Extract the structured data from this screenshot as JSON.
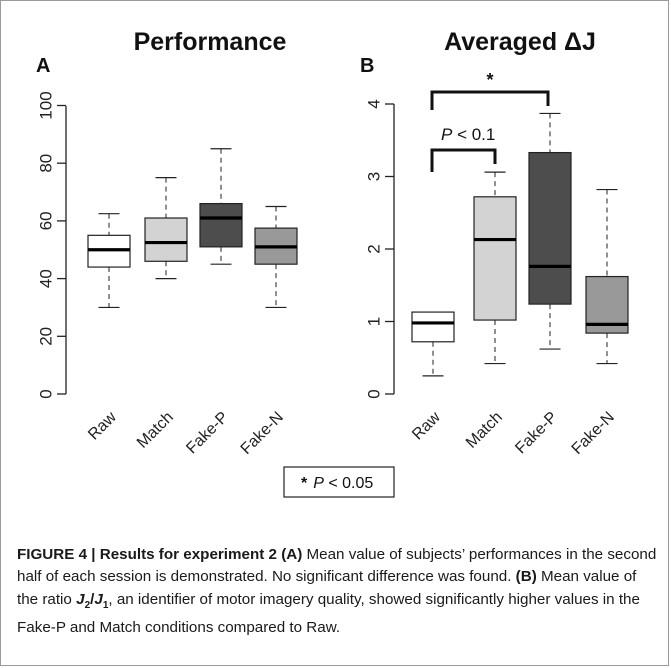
{
  "chart_data": [
    {
      "type": "boxplot",
      "panel_label": "A",
      "title": "Performance",
      "categories": [
        "Raw",
        "Match",
        "Fake-P",
        "Fake-N"
      ],
      "yticks": [
        0,
        20,
        40,
        60,
        80,
        100
      ],
      "ylim": [
        0,
        100
      ],
      "grid": false,
      "boxes": [
        {
          "name": "Raw",
          "whisker_low": 30,
          "q1": 44,
          "median": 50,
          "q3": 55,
          "whisker_high": 62.5,
          "color": "#ffffff"
        },
        {
          "name": "Match",
          "whisker_low": 40,
          "q1": 46,
          "median": 52.5,
          "q3": 61,
          "whisker_high": 75,
          "color": "#d3d3d3"
        },
        {
          "name": "Fake-P",
          "whisker_low": 45,
          "q1": 51,
          "median": 61,
          "q3": 66,
          "whisker_high": 85,
          "color": "#4d4d4d"
        },
        {
          "name": "Fake-N",
          "whisker_low": 30,
          "q1": 45,
          "median": 51,
          "q3": 57.5,
          "whisker_high": 65,
          "color": "#999999"
        }
      ]
    },
    {
      "type": "boxplot",
      "panel_label": "B",
      "title": "Averaged ΔJ",
      "categories": [
        "Raw",
        "Match",
        "Fake-P",
        "Fake-N"
      ],
      "yticks": [
        0,
        1,
        2,
        3,
        4
      ],
      "ylim": [
        0,
        4.2
      ],
      "grid": false,
      "boxes": [
        {
          "name": "Raw",
          "whisker_low": 0.25,
          "q1": 0.72,
          "median": 0.98,
          "q3": 1.13,
          "whisker_high": 1.13,
          "color": "#ffffff"
        },
        {
          "name": "Match",
          "whisker_low": 0.42,
          "q1": 1.02,
          "median": 2.13,
          "q3": 2.72,
          "whisker_high": 3.06,
          "color": "#d3d3d3"
        },
        {
          "name": "Fake-P",
          "whisker_low": 0.62,
          "q1": 1.24,
          "median": 1.76,
          "q3": 3.33,
          "whisker_high": 3.87,
          "color": "#4d4d4d"
        },
        {
          "name": "Fake-N",
          "whisker_low": 0.42,
          "q1": 0.84,
          "median": 0.96,
          "q3": 1.62,
          "whisker_high": 2.82,
          "color": "#999999"
        }
      ],
      "annotations": [
        {
          "from": "Raw",
          "to": "Fake-P",
          "text": "*"
        },
        {
          "from": "Raw",
          "to": "Match",
          "text_italic": "P",
          "text_rest": " < 0.1"
        }
      ]
    }
  ],
  "legend": {
    "star": "*",
    "p_italic": "P",
    "rest": " < 0.05"
  },
  "caption": {
    "label": "FIGURE 4 | Results for experiment 2 (A)",
    "text1": " Mean value of subjects’ performances in the second half of each session is demonstrated. No significant difference was found. ",
    "label_b": "(B)",
    "text2": " Mean value of the ratio ",
    "ratio_j2": "J",
    "ratio_j2_sub": "2",
    "ratio_slash": "/",
    "ratio_j1": "J",
    "ratio_j1_sub": "1",
    "text3": ", an identifier of motor imagery quality, showed significantly higher values in the Fake-P and Match conditions compared to Raw."
  }
}
